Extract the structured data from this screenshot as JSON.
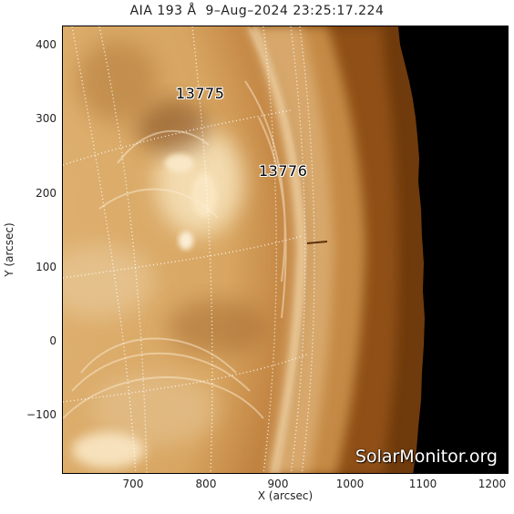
{
  "title": "AIA 193 Å  9–Aug–2024 23:25:17.224",
  "axes": {
    "xlabel": "X (arcsec)",
    "ylabel": "Y (arcsec)",
    "xticks": [
      "700",
      "800",
      "900",
      "1000",
      "1100",
      "1200"
    ],
    "yticks": [
      "400",
      "300",
      "200",
      "100",
      "0",
      "−100"
    ],
    "xlim": [
      610,
      1205
    ],
    "ylim": [
      -180,
      425
    ]
  },
  "active_regions": [
    {
      "label": "13775"
    },
    {
      "label": "13776"
    }
  ],
  "watermark": "SolarMonitor.org",
  "colors": {
    "corona_bright": "#f6dfb2",
    "corona_mid": "#c9924e",
    "corona_dark": "#7a4514",
    "space": "#000000",
    "grid": "#ffffff"
  }
}
